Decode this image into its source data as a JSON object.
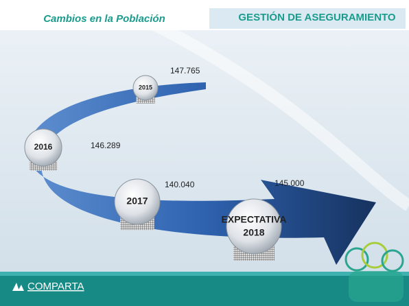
{
  "header": {
    "left_title": "Cambios en la Población",
    "right_title": "GESTIÓN DE ASEGURAMIENTO"
  },
  "nodes": [
    {
      "label": "2015",
      "value": "147.765"
    },
    {
      "label": "2016",
      "value": "146.289"
    },
    {
      "label": "2017",
      "value": "140.040"
    },
    {
      "label": "EXPECTATIVA",
      "sublabel": "2018",
      "value": "145.000"
    }
  ],
  "footer": {
    "logo": "COMPARTA"
  }
}
